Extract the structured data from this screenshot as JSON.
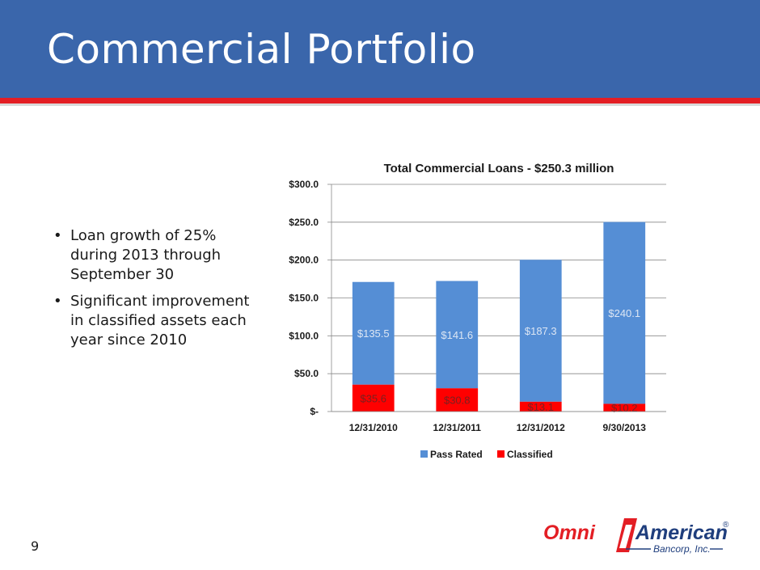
{
  "slide": {
    "title": "Commercial Portfolio",
    "page_number": "9",
    "bullets": [
      "Loan growth of 25% during 2013 through September 30",
      "Significant improvement in classified assets each year since 2010"
    ]
  },
  "logo": {
    "word1": "Omni",
    "word2": "American",
    "sub": "Bancorp, Inc.",
    "registered": "®"
  },
  "colors": {
    "header": "#3a66ab",
    "accent_red": "#e31e24",
    "pass_rated": "#558ed5",
    "classified": "#ff0000"
  },
  "chart_data": {
    "type": "bar",
    "stacked": true,
    "title": "Total Commercial Loans - $250.3 million",
    "categories": [
      "12/31/2010",
      "12/31/2011",
      "12/31/2012",
      "9/30/2013"
    ],
    "series": [
      {
        "name": "Classified",
        "values": [
          35.6,
          30.8,
          13.1,
          10.2
        ],
        "labels": [
          "$35.6",
          "$30.8",
          "$13.1",
          "$10.2"
        ]
      },
      {
        "name": "Pass Rated",
        "values": [
          135.5,
          141.6,
          187.3,
          240.1
        ],
        "labels": [
          "$135.5",
          "$141.6",
          "$187.3",
          "$240.1"
        ]
      }
    ],
    "legend_order": [
      "Pass Rated",
      "Classified"
    ],
    "ylim": [
      0,
      300
    ],
    "yticks": [
      0,
      50,
      100,
      150,
      200,
      250,
      300
    ],
    "ytick_labels": [
      "$-",
      "$50.0",
      "$100.0",
      "$150.0",
      "$200.0",
      "$250.0",
      "$300.0"
    ],
    "grid": true,
    "legend_position": "bottom"
  }
}
